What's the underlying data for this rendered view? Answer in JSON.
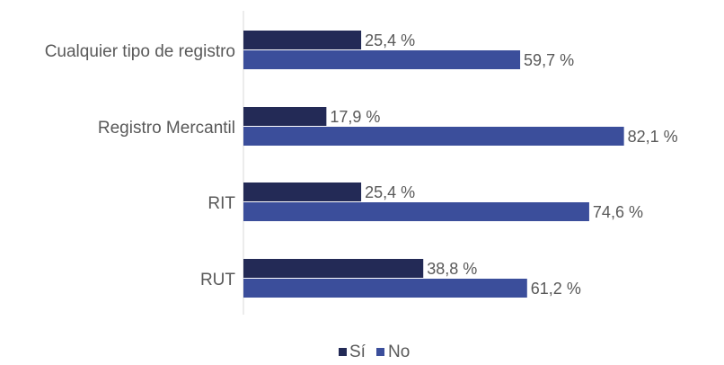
{
  "chart_data": {
    "type": "bar",
    "orientation": "horizontal",
    "categories": [
      "Cualquier tipo de registro",
      "Registro Mercantil",
      "RIT",
      "RUT"
    ],
    "series": [
      {
        "name": "Sí",
        "values": [
          25.4,
          17.9,
          25.4,
          38.8
        ],
        "labels": [
          "25,4 %",
          "17,9 %",
          "25,4 %",
          "38,8 %"
        ],
        "color": "#232a56"
      },
      {
        "name": "No",
        "values": [
          59.7,
          82.1,
          74.6,
          61.2
        ],
        "labels": [
          "59,7 %",
          "82,1 %",
          "74,6 %",
          "61,2 %"
        ],
        "color": "#3b4e9b"
      }
    ],
    "xlim": [
      0,
      100
    ],
    "grid": false,
    "legend": {
      "position": "bottom",
      "entries": [
        "Sí",
        "No"
      ]
    }
  }
}
